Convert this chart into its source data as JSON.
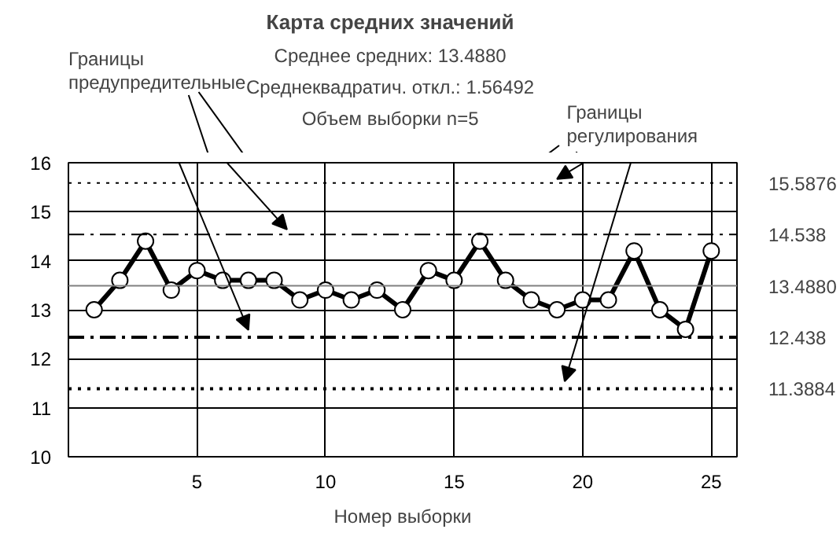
{
  "chart_data": {
    "type": "line",
    "title": "Карта средних значений",
    "subtitle": "Среднее средних: 13.4880\nСреднеквадратич. откл.: 1.56492\nОбъем выборки n=5",
    "xlabel": "Номер выборки",
    "x": [
      1,
      2,
      3,
      4,
      5,
      6,
      7,
      8,
      9,
      10,
      11,
      12,
      13,
      14,
      15,
      16,
      17,
      18,
      19,
      20,
      21,
      22,
      23,
      24,
      25
    ],
    "series": [
      {
        "color": "#000000",
        "values": [
          13.0,
          13.6,
          14.4,
          13.4,
          13.8,
          13.6,
          13.6,
          13.6,
          13.2,
          13.4,
          13.2,
          13.4,
          13.0,
          13.8,
          13.6,
          14.4,
          13.6,
          13.2,
          13.0,
          13.2,
          13.2,
          14.2,
          13.0,
          12.6,
          14.2
        ]
      }
    ],
    "marker": "circle",
    "line_style": "solid",
    "grid": true,
    "xlim": [
      0,
      26
    ],
    "xticks": [
      5,
      10,
      15,
      20,
      25
    ],
    "ylim": [
      10,
      16
    ],
    "yticks": [
      10,
      11,
      12,
      13,
      14,
      15,
      16
    ],
    "ref_lines": [
      {
        "axis": "y",
        "value": 15.5876,
        "label": "15.5876",
        "color": "#000000",
        "line_style": "dotted"
      },
      {
        "axis": "y",
        "value": 14.538,
        "label": "14.538",
        "color": "#000000",
        "line_style": "dashdot"
      },
      {
        "axis": "y",
        "value": 13.488,
        "label": "13.4880",
        "color": "#808080",
        "line_style": "solid"
      },
      {
        "axis": "y",
        "value": 12.438,
        "label": "12.438",
        "color": "#000000",
        "line_style": "dashdot"
      },
      {
        "axis": "y",
        "value": 11.3884,
        "label": "11.3884",
        "color": "#000000",
        "line_style": "dotted"
      }
    ],
    "annotations": [
      "Границы\nпредупредительные",
      "Границы\nрегулирования"
    ]
  }
}
